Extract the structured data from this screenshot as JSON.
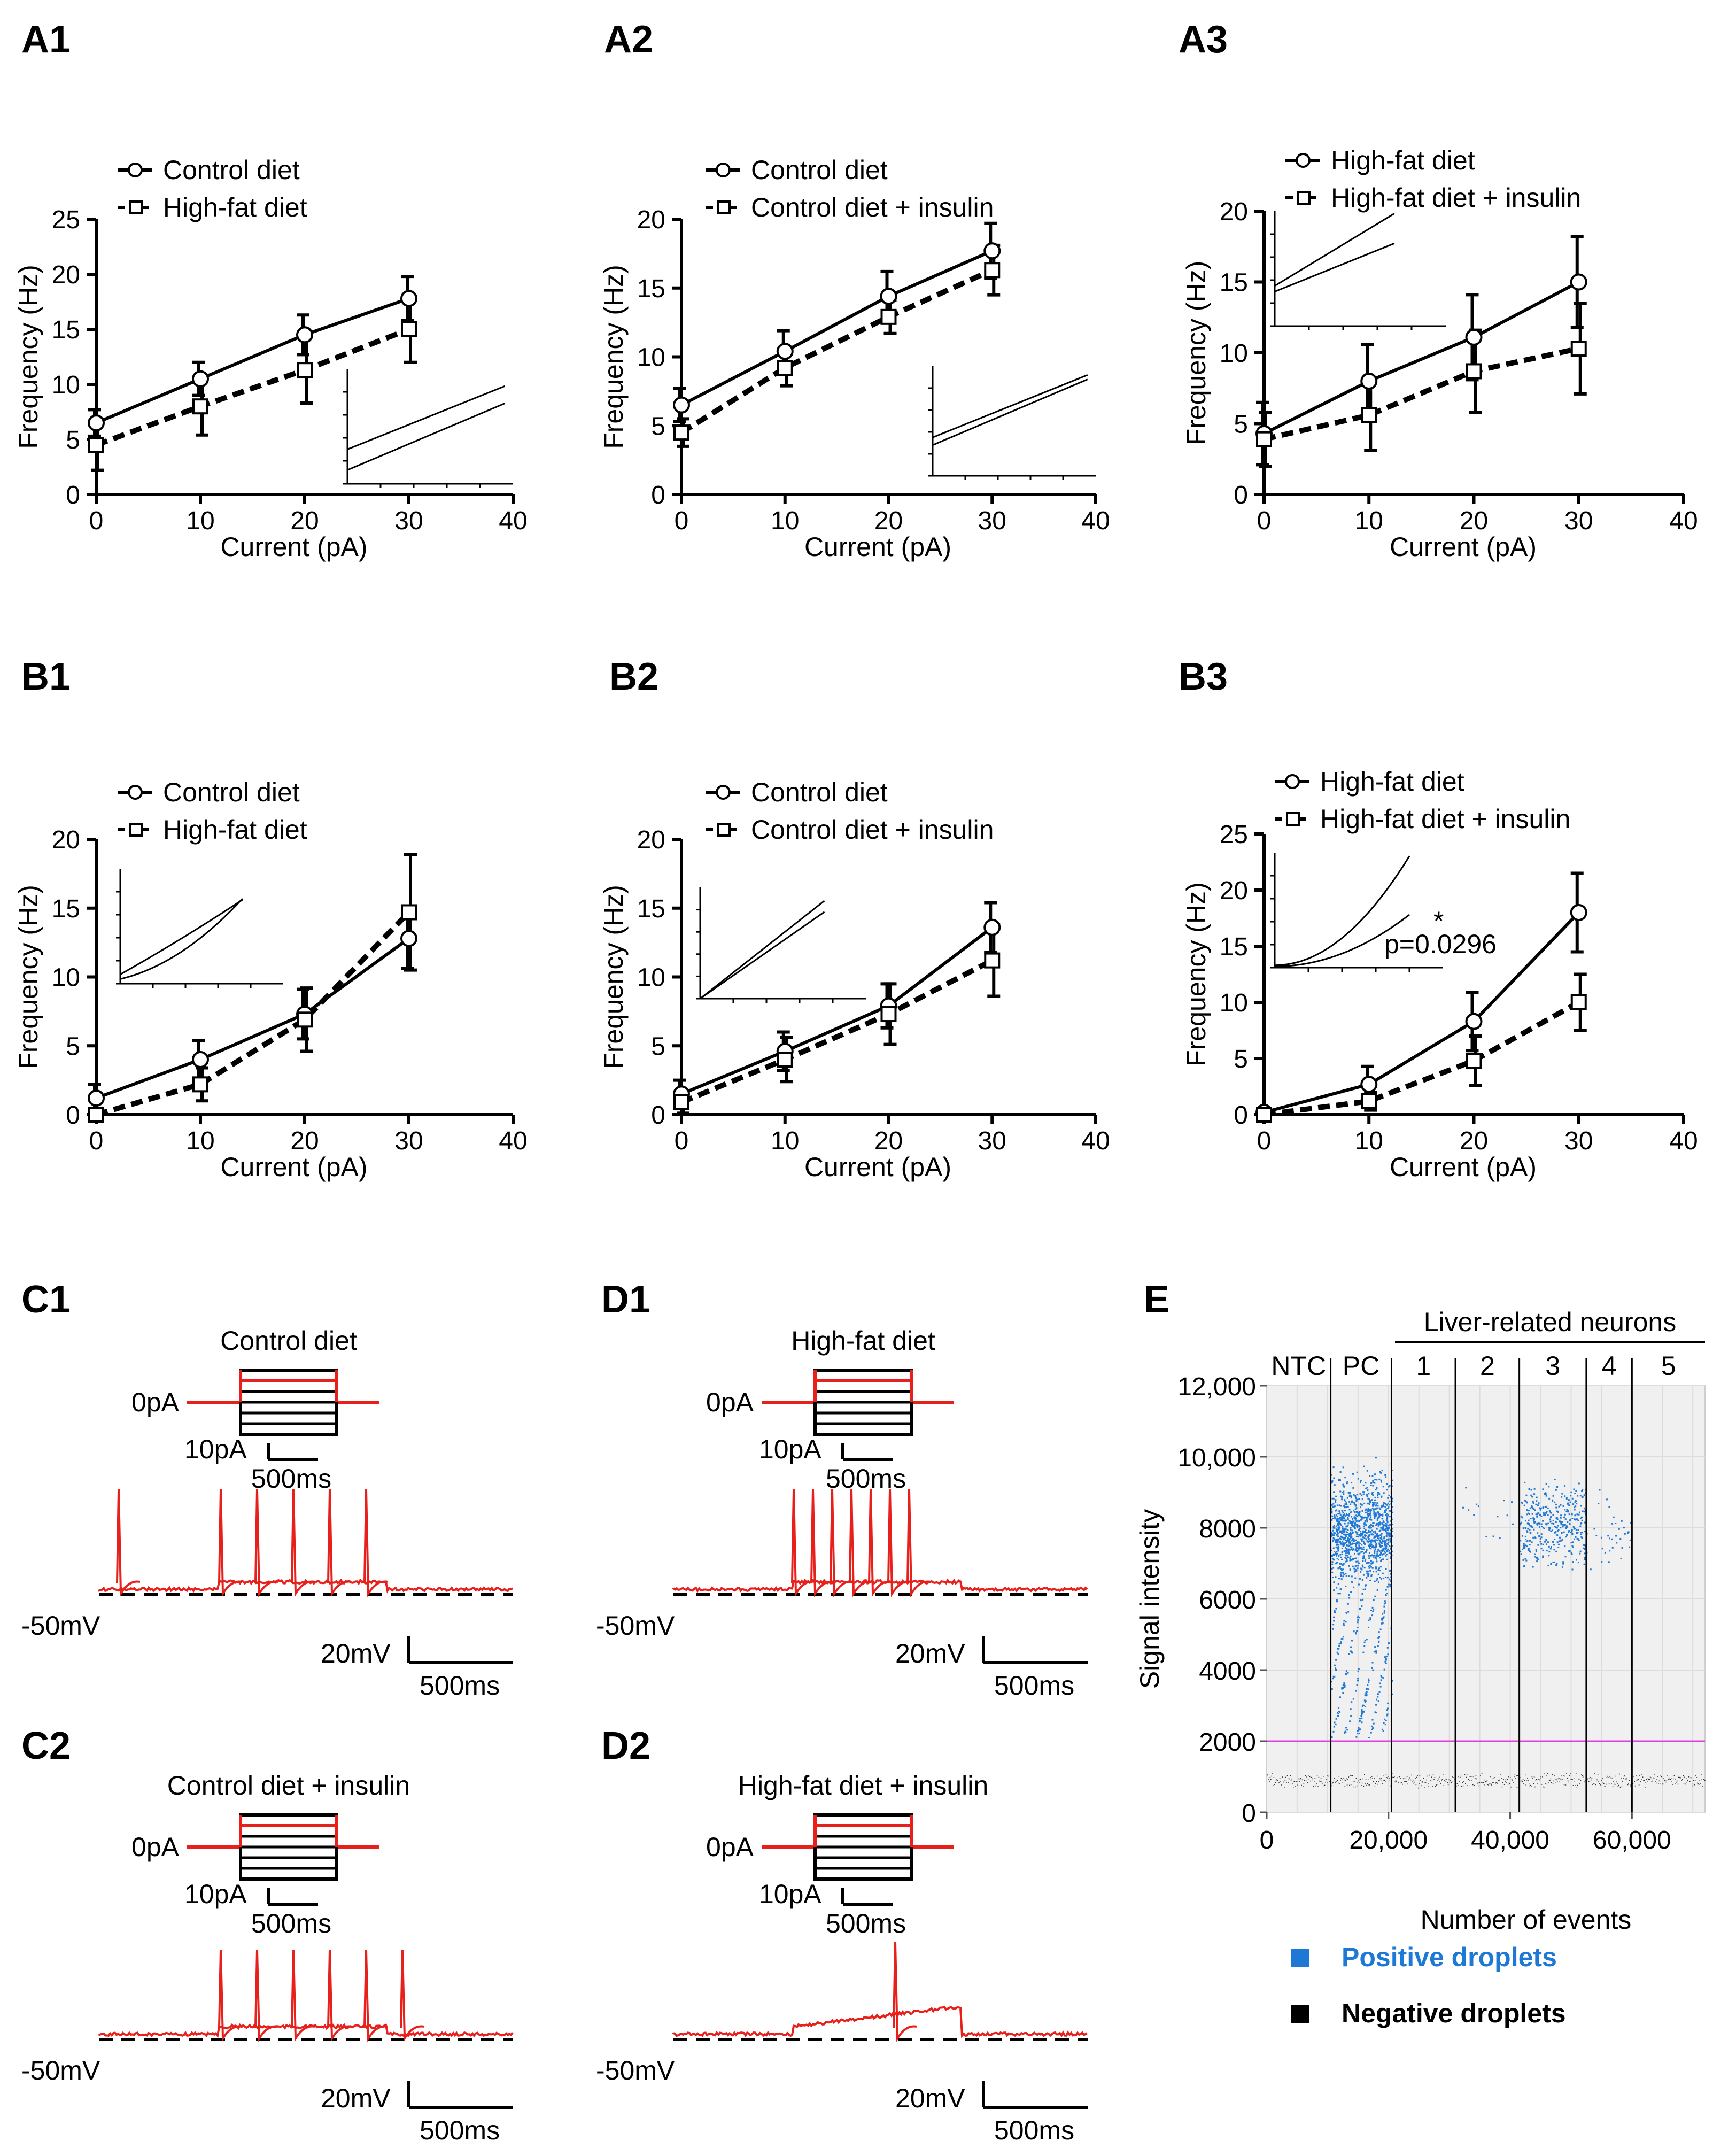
{
  "panel_labels": {
    "A1": "A1",
    "A2": "A2",
    "A3": "A3",
    "B1": "B1",
    "B2": "B2",
    "B3": "B3",
    "C1": "C1",
    "C2": "C2",
    "D1": "D1",
    "D2": "D2",
    "E": "E"
  },
  "colors": {
    "trace": "#e8201c",
    "positive": "#1d78d6",
    "negative": "#333333",
    "threshold": "#e040e0",
    "plot_bg": "#f0f0f0"
  },
  "chart_data": [
    {
      "id": "A1",
      "type": "line",
      "xlabel": "Current (pA)",
      "ylabel": "Frequency (Hz)",
      "xlim": [
        0,
        40
      ],
      "ylim": [
        0,
        25
      ],
      "xticks": [
        0,
        10,
        20,
        30,
        40
      ],
      "yticks": [
        0,
        5,
        10,
        15,
        20,
        25
      ],
      "x": [
        0,
        10,
        20,
        30
      ],
      "series": [
        {
          "name": "Control diet",
          "style": "solid-circle",
          "values": [
            6.5,
            10.5,
            14.5,
            17.8
          ],
          "err": [
            1.2,
            1.5,
            1.8,
            2.0
          ]
        },
        {
          "name": "High-fat diet",
          "style": "dashed-square",
          "values": [
            4.5,
            8.0,
            11.3,
            15.0
          ],
          "err": [
            2.3,
            2.6,
            3.0,
            3.0
          ]
        }
      ],
      "inset": {
        "position": "bottom-right",
        "lines": [
          [
            0.3,
            0.85
          ],
          [
            0.12,
            0.7
          ]
        ]
      }
    },
    {
      "id": "A2",
      "type": "line",
      "xlabel": "Current (pA)",
      "ylabel": "Frequency (Hz)",
      "xlim": [
        0,
        40
      ],
      "ylim": [
        0,
        20
      ],
      "xticks": [
        0,
        10,
        20,
        30,
        40
      ],
      "yticks": [
        0,
        5,
        10,
        15,
        20
      ],
      "x": [
        0,
        10,
        20,
        30
      ],
      "series": [
        {
          "name": "Control diet",
          "style": "solid-circle",
          "values": [
            6.5,
            10.4,
            14.4,
            17.7
          ],
          "err": [
            1.2,
            1.5,
            1.8,
            2.0
          ]
        },
        {
          "name": "Control diet + insulin",
          "style": "dashed-square",
          "values": [
            4.5,
            9.2,
            12.9,
            16.3
          ],
          "err": [
            1.0,
            1.3,
            1.2,
            1.8
          ]
        }
      ],
      "inset": {
        "position": "bottom-right",
        "lines": [
          [
            0.35,
            0.92
          ],
          [
            0.28,
            0.88
          ]
        ]
      }
    },
    {
      "id": "A3",
      "type": "line",
      "xlabel": "Current (pA)",
      "ylabel": "Frequency (Hz)",
      "xlim": [
        0,
        40
      ],
      "ylim": [
        0,
        20
      ],
      "xticks": [
        0,
        10,
        20,
        30,
        40
      ],
      "yticks": [
        0,
        5,
        10,
        15,
        20
      ],
      "x": [
        0,
        10,
        20,
        30
      ],
      "series": [
        {
          "name": "High-fat diet",
          "style": "solid-circle",
          "values": [
            4.3,
            8.0,
            11.1,
            15.0
          ],
          "err": [
            2.2,
            2.6,
            3.0,
            3.2
          ]
        },
        {
          "name": "High-fat diet + insulin",
          "style": "dashed-square",
          "values": [
            3.9,
            5.6,
            8.7,
            10.3
          ],
          "err": [
            1.9,
            2.5,
            2.9,
            3.2
          ]
        }
      ],
      "inset": {
        "position": "top-left",
        "lines": [
          [
            0.35,
            0.98
          ],
          [
            0.3,
            0.72
          ]
        ]
      }
    },
    {
      "id": "B1",
      "type": "line",
      "xlabel": "Current (pA)",
      "ylabel": "Frequency (Hz)",
      "xlim": [
        0,
        40
      ],
      "ylim": [
        0,
        20
      ],
      "xticks": [
        0,
        10,
        20,
        30,
        40
      ],
      "yticks": [
        0,
        5,
        10,
        15,
        20
      ],
      "x": [
        0,
        10,
        20,
        30
      ],
      "series": [
        {
          "name": "Control diet",
          "style": "solid-circle",
          "values": [
            1.2,
            4.0,
            7.3,
            12.8
          ],
          "err": [
            1.0,
            1.4,
            1.8,
            2.2
          ]
        },
        {
          "name": "High-fat diet",
          "style": "dashed-square",
          "values": [
            0.0,
            2.2,
            6.9,
            14.7
          ],
          "err": [
            0.4,
            1.2,
            2.3,
            4.2
          ]
        }
      ],
      "inset": {
        "position": "top-left",
        "curves": "crossing"
      }
    },
    {
      "id": "B2",
      "type": "line",
      "xlabel": "Current (pA)",
      "ylabel": "Frequency (Hz)",
      "xlim": [
        0,
        40
      ],
      "ylim": [
        0,
        20
      ],
      "xticks": [
        0,
        10,
        20,
        30,
        40
      ],
      "yticks": [
        0,
        5,
        10,
        15,
        20
      ],
      "x": [
        0,
        10,
        20,
        30
      ],
      "series": [
        {
          "name": "Control diet",
          "style": "solid-circle",
          "values": [
            1.5,
            4.6,
            7.9,
            13.6
          ],
          "err": [
            1.0,
            1.4,
            1.6,
            1.8
          ]
        },
        {
          "name": "Control diet + insulin",
          "style": "dashed-square",
          "values": [
            0.9,
            4.0,
            7.3,
            11.2
          ],
          "err": [
            0.8,
            1.6,
            2.2,
            2.6
          ]
        }
      ],
      "inset": {
        "position": "top-left",
        "lines": [
          [
            0.0,
            0.88
          ],
          [
            0.0,
            0.78
          ]
        ]
      }
    },
    {
      "id": "B3",
      "type": "line",
      "xlabel": "Current (pA)",
      "ylabel": "Frequency (Hz)",
      "xlim": [
        0,
        40
      ],
      "ylim": [
        0,
        25
      ],
      "xticks": [
        0,
        10,
        20,
        30,
        40
      ],
      "yticks": [
        0,
        5,
        10,
        15,
        20,
        25
      ],
      "x": [
        0,
        10,
        20,
        30
      ],
      "series": [
        {
          "name": "High-fat diet",
          "style": "solid-circle",
          "values": [
            0.2,
            2.7,
            8.3,
            18.0
          ],
          "err": [
            0.3,
            1.6,
            2.6,
            3.5
          ]
        },
        {
          "name": "High-fat diet + insulin",
          "style": "dashed-square",
          "values": [
            0.0,
            1.2,
            4.8,
            10.0
          ],
          "err": [
            0.3,
            0.8,
            2.2,
            2.5
          ]
        }
      ],
      "inset": {
        "position": "top-left",
        "curves": "diverging"
      },
      "annotation": {
        "star": "*",
        "text": "p=0.0296"
      }
    },
    {
      "id": "E",
      "type": "scatter",
      "title": "",
      "xlabel": "Number of events",
      "ylabel": "Signal intensity",
      "xlim": [
        0,
        72000
      ],
      "ylim": [
        0,
        12000
      ],
      "xticks": [
        0,
        20000,
        40000,
        60000
      ],
      "xtick_labels": [
        "0",
        "20,000",
        "40,000",
        "60,000"
      ],
      "yticks": [
        0,
        2000,
        4000,
        6000,
        8000,
        10000,
        12000
      ],
      "ytick_labels": [
        "0",
        "2000",
        "4000",
        "6000",
        "8000",
        "10,000",
        "12,000"
      ],
      "threshold": 2000,
      "group_header": "Liver-related neurons",
      "lanes": [
        {
          "label": "NTC",
          "x_range": [
            0,
            10500
          ],
          "positive": 0,
          "pos_center": 0
        },
        {
          "label": "PC",
          "x_range": [
            10500,
            20500
          ],
          "positive": 1400,
          "pos_center": 8000
        },
        {
          "label": "1",
          "x_range": [
            20500,
            31000
          ],
          "positive": 0,
          "pos_center": 0
        },
        {
          "label": "2",
          "x_range": [
            31000,
            41500
          ],
          "positive": 14,
          "pos_center": 8300
        },
        {
          "label": "3",
          "x_range": [
            41500,
            52500
          ],
          "positive": 400,
          "pos_center": 8100
        },
        {
          "label": "4",
          "x_range": [
            52500,
            60000
          ],
          "positive": 35,
          "pos_center": 7900
        },
        {
          "label": "5",
          "x_range": [
            60000,
            72000
          ],
          "positive": 0,
          "pos_center": 0
        }
      ],
      "negative_band": {
        "center": 900,
        "spread": 150
      },
      "legend": [
        {
          "label": "Positive droplets",
          "color": "#1d78d6"
        },
        {
          "label": "Negative droplets",
          "color": "#000000"
        }
      ]
    }
  ],
  "traces": {
    "C1": {
      "title": "Control diet",
      "step_zero": "0pA",
      "step_size": "10pA",
      "step_time": "500ms",
      "baseline": "-50mV",
      "scale_v": "20mV",
      "scale_t": "500ms",
      "spikes": 6
    },
    "D1": {
      "title": "High-fat diet",
      "step_zero": "0pA",
      "step_size": "10pA",
      "step_time": "500ms",
      "baseline": "-50mV",
      "scale_v": "20mV",
      "scale_t": "500ms",
      "spikes": 7
    },
    "C2": {
      "title": "Control diet + insulin",
      "step_zero": "0pA",
      "step_size": "10pA",
      "step_time": "500ms",
      "baseline": "-50mV",
      "scale_v": "20mV",
      "scale_t": "500ms",
      "spikes": 6
    },
    "D2": {
      "title": "High-fat diet + insulin",
      "step_zero": "0pA",
      "step_size": "10pA",
      "step_time": "500ms",
      "baseline": "-50mV",
      "scale_v": "20mV",
      "scale_t": "500ms",
      "spikes": 1
    }
  }
}
